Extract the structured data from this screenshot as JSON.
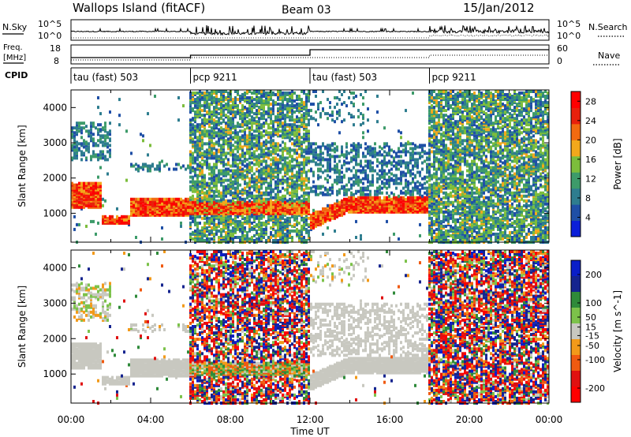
{
  "header": {
    "station": "Wallops Island (fitACF)",
    "beam": "Beam 03",
    "date": "15/Jan/2012"
  },
  "side_labels": {
    "nsky": "N.Sky",
    "nsearch": "N.Search",
    "freq": "Freq.",
    "freq_unit": "[MHz]",
    "nave": "Nave",
    "cpid": "CPID"
  },
  "noise_axis": {
    "left_ticks": [
      "10^5",
      "10^0"
    ],
    "right_ticks": [
      "10^5",
      "10^0"
    ]
  },
  "freq_axis": {
    "left_ticks": [
      "18",
      "8"
    ],
    "right_ticks": [
      "60",
      "0"
    ]
  },
  "cpid_segments": [
    {
      "label": "tau (fast) 503",
      "start": 0,
      "end": 6
    },
    {
      "label": "pcp 9211",
      "start": 6,
      "end": 12
    },
    {
      "label": "tau (fast) 503",
      "start": 12,
      "end": 18
    },
    {
      "label": "pcp 9211",
      "start": 18,
      "end": 24
    }
  ],
  "colors": {
    "power_scale": [
      "#0b1fd8",
      "#1f4fa6",
      "#2e7d8f",
      "#3d9b6a",
      "#7cbd3c",
      "#f2a81c",
      "#f26a10",
      "#e8200c",
      "#ff0000"
    ],
    "velocity_scale": [
      "#0a1ec8",
      "#15248f",
      "#2f8a3a",
      "#7cc24a",
      "#c8c8c0",
      "#f29a1a",
      "#f05a10",
      "#e01010",
      "#ff0000"
    ]
  },
  "chart_data": [
    {
      "type": "heatmap",
      "title": "Power",
      "xlabel": "Time UT",
      "ylabel": "Slant Range [km]",
      "colorbar_label": "Power [dB]",
      "x_ticks": [
        "00:00",
        "04:00",
        "08:00",
        "12:00",
        "16:00",
        "20:00",
        "00:00"
      ],
      "x_range_hours": [
        0,
        24
      ],
      "y_ticks": [
        1000,
        2000,
        3000,
        4000
      ],
      "ylim": [
        180,
        4500
      ],
      "colorbar_ticks": [
        4,
        8,
        12,
        16,
        20,
        24,
        28
      ],
      "colorbar_range": [
        0,
        30
      ]
    },
    {
      "type": "heatmap",
      "title": "Velocity",
      "xlabel": "Time UT",
      "ylabel": "Slant Range [km]",
      "colorbar_label": "Velocity [m s^-1]",
      "x_ticks": [
        "00:00",
        "04:00",
        "08:00",
        "12:00",
        "16:00",
        "20:00",
        "00:00"
      ],
      "x_range_hours": [
        0,
        24
      ],
      "y_ticks": [
        1000,
        2000,
        3000,
        4000
      ],
      "ylim": [
        180,
        4500
      ],
      "colorbar_ticks": [
        200,
        100,
        50,
        15,
        -15,
        -50,
        -100,
        -200
      ],
      "colorbar_range": [
        -250,
        250
      ]
    }
  ]
}
